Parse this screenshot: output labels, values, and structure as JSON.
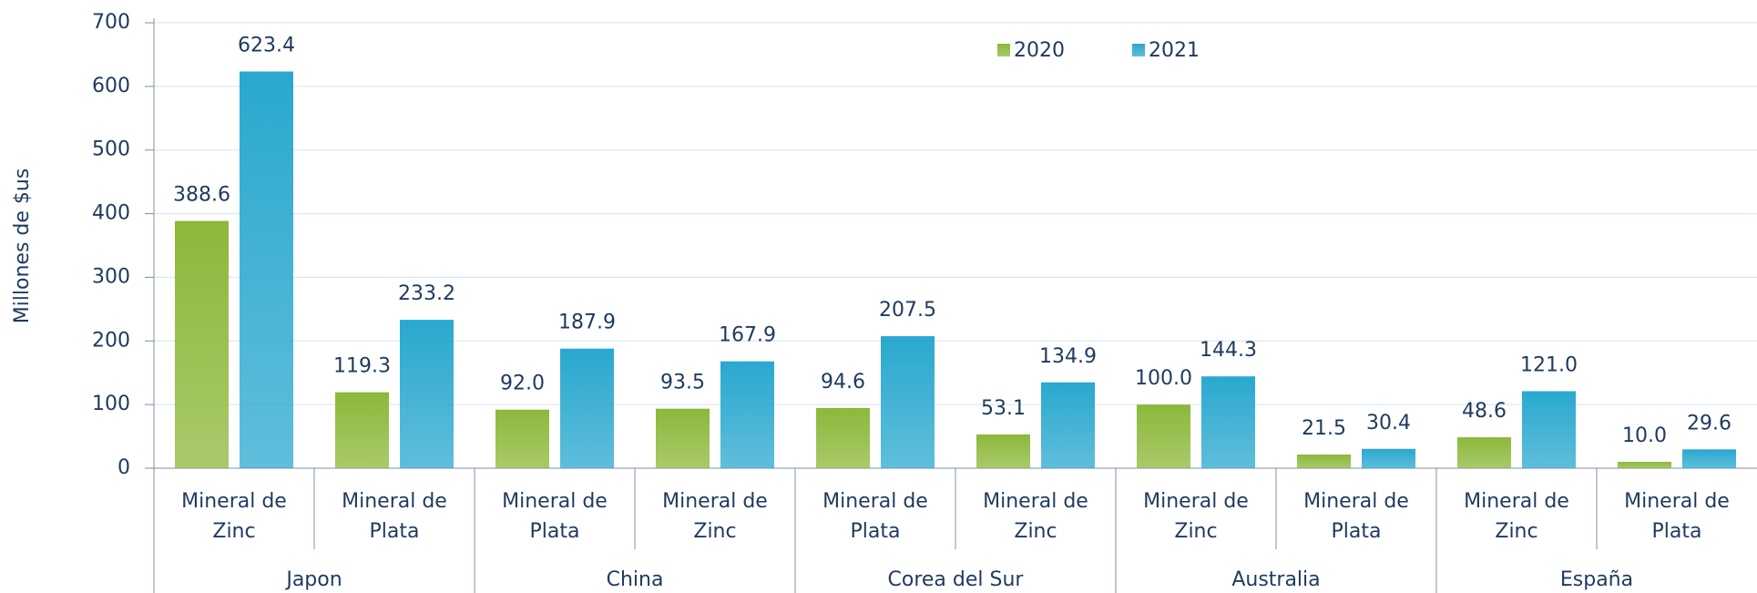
{
  "chart_data": {
    "type": "bar",
    "y_label": "Millones de $us",
    "categories": [
      "Mineral de Zinc",
      "Mineral de Plata",
      "Mineral de Plata",
      "Mineral de Zinc",
      "Mineral de Plata",
      "Mineral de Zinc",
      "Mineral de Zinc",
      "Mineral de Plata",
      "Mineral de Zinc",
      "Mineral de Plata"
    ],
    "groups": [
      "Japon",
      "China",
      "Corea del Sur",
      "Australia",
      "España"
    ],
    "series": [
      {
        "name": "2020",
        "color": "#8cb83a",
        "values": [
          388.6,
          119.3,
          92.0,
          93.5,
          94.6,
          53.1,
          100.0,
          21.5,
          48.6,
          10.0
        ],
        "value_labels": [
          "388.6",
          "119.3",
          "92.0",
          "93.5",
          "94.6",
          "53.1",
          "100.0",
          "21.5",
          "48.6",
          "10.0"
        ]
      },
      {
        "name": "2021",
        "color": "#2aa8cf",
        "values": [
          623.4,
          233.2,
          187.9,
          167.9,
          207.5,
          134.9,
          144.3,
          30.4,
          121.0,
          29.6
        ],
        "value_labels": [
          "623.4",
          "233.2",
          "187.9",
          "167.9",
          "207.5",
          "134.9",
          "144.3",
          "30.4",
          "121.0",
          "29.6"
        ]
      }
    ],
    "ylim": [
      0,
      700
    ],
    "yticks": [
      0,
      100,
      200,
      300,
      400,
      500,
      600,
      700
    ],
    "grid": true,
    "legend": "top"
  }
}
